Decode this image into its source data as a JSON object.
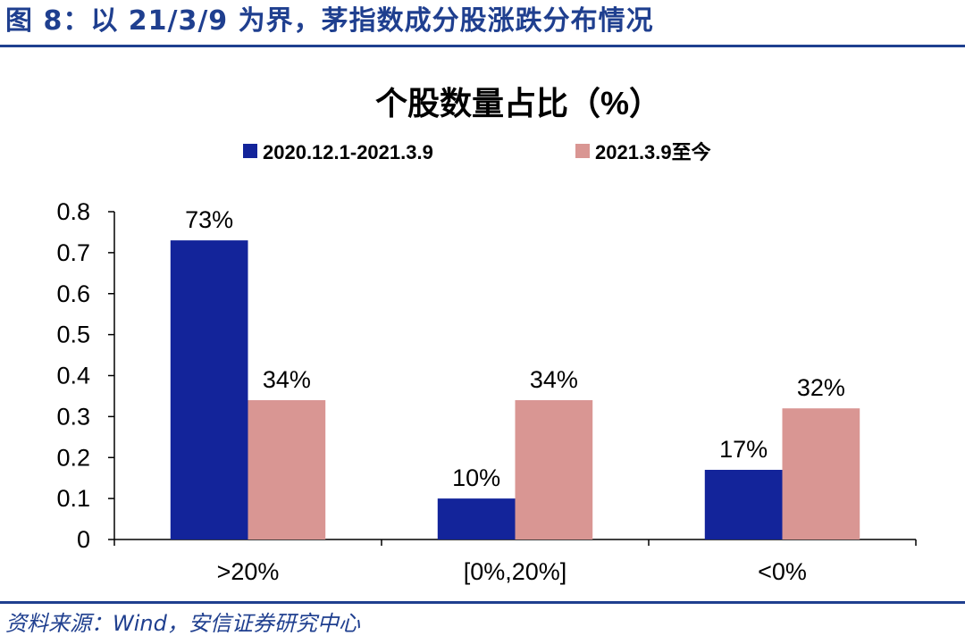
{
  "figure": {
    "title": "图 8：以 21/3/9 为界，茅指数成分股涨跌分布情况",
    "source": "资料来源：Wind，安信证券研究中心",
    "accent_color": "#1f3f8f"
  },
  "chart_data": {
    "type": "bar",
    "title": "个股数量占比（%）",
    "categories": [
      ">20%",
      "[0%,20%]",
      "<0%"
    ],
    "series": [
      {
        "name": "2020.12.1-2021.3.9",
        "values": [
          0.73,
          0.1,
          0.17
        ],
        "labels": [
          "73%",
          "10%",
          "17%"
        ],
        "color": "#13249a"
      },
      {
        "name": "2021.3.9至今",
        "values": [
          0.34,
          0.34,
          0.32
        ],
        "labels": [
          "34%",
          "34%",
          "32%"
        ],
        "color": "#d99693"
      }
    ],
    "yticks": [
      "0",
      "0.1",
      "0.2",
      "0.3",
      "0.4",
      "0.5",
      "0.6",
      "0.7",
      "0.8"
    ],
    "ylim": [
      0,
      0.8
    ],
    "xlabel": "",
    "ylabel": "",
    "grid": false,
    "legend_position": "top"
  }
}
